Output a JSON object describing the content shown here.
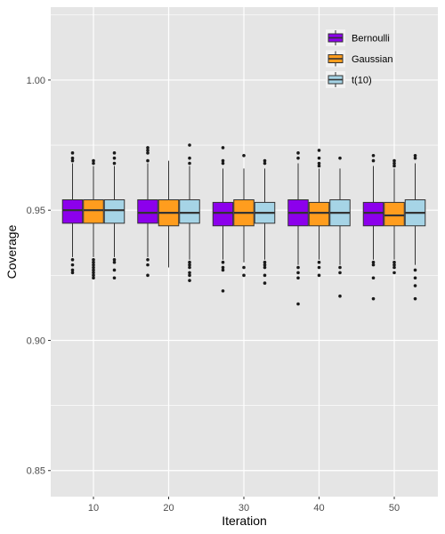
{
  "chart_data": {
    "type": "box",
    "xlabel": "Iteration",
    "ylabel": "Coverage",
    "categories": [
      "10",
      "20",
      "30",
      "40",
      "50"
    ],
    "ylim": [
      0.84,
      1.028
    ],
    "yticks": [
      0.85,
      0.9,
      0.95,
      1.0
    ],
    "ytick_labels": [
      "0.85",
      "0.90",
      "0.95",
      "1.00"
    ],
    "grid": true,
    "legend_position": "top-right",
    "series": [
      {
        "name": "Bernoulli",
        "color": "#8c00ec",
        "boxes": [
          {
            "q1": 0.945,
            "median": 0.95,
            "q3": 0.954,
            "whisker_low": 0.932,
            "whisker_high": 0.968,
            "outliers": [
              0.972,
              0.97,
              0.969,
              0.931,
              0.929,
              0.927,
              0.926
            ]
          },
          {
            "q1": 0.945,
            "median": 0.949,
            "q3": 0.954,
            "whisker_low": 0.932,
            "whisker_high": 0.968,
            "outliers": [
              0.974,
              0.973,
              0.972,
              0.969,
              0.931,
              0.929,
              0.925
            ]
          },
          {
            "q1": 0.944,
            "median": 0.949,
            "q3": 0.953,
            "whisker_low": 0.931,
            "whisker_high": 0.966,
            "outliers": [
              0.974,
              0.969,
              0.968,
              0.93,
              0.928,
              0.927,
              0.919
            ]
          },
          {
            "q1": 0.944,
            "median": 0.949,
            "q3": 0.954,
            "whisker_low": 0.929,
            "whisker_high": 0.968,
            "outliers": [
              0.972,
              0.97,
              0.928,
              0.926,
              0.924,
              0.914
            ]
          },
          {
            "q1": 0.944,
            "median": 0.949,
            "q3": 0.953,
            "whisker_low": 0.931,
            "whisker_high": 0.967,
            "outliers": [
              0.971,
              0.969,
              0.93,
              0.929,
              0.924,
              0.916
            ]
          }
        ]
      },
      {
        "name": "Gaussian",
        "color": "#ff9d1e",
        "boxes": [
          {
            "q1": 0.945,
            "median": 0.95,
            "q3": 0.954,
            "whisker_low": 0.932,
            "whisker_high": 0.967,
            "outliers": [
              0.969,
              0.968,
              0.931,
              0.93,
              0.929,
              0.928,
              0.927,
              0.926,
              0.925,
              0.924
            ]
          },
          {
            "q1": 0.944,
            "median": 0.949,
            "q3": 0.954,
            "whisker_low": 0.928,
            "whisker_high": 0.969,
            "outliers": []
          },
          {
            "q1": 0.944,
            "median": 0.949,
            "q3": 0.954,
            "whisker_low": 0.93,
            "whisker_high": 0.966,
            "outliers": [
              0.971,
              0.928,
              0.925
            ]
          },
          {
            "q1": 0.944,
            "median": 0.949,
            "q3": 0.953,
            "whisker_low": 0.931,
            "whisker_high": 0.966,
            "outliers": [
              0.973,
              0.97,
              0.968,
              0.967,
              0.93,
              0.928,
              0.925
            ]
          },
          {
            "q1": 0.944,
            "median": 0.948,
            "q3": 0.953,
            "whisker_low": 0.931,
            "whisker_high": 0.966,
            "outliers": [
              0.969,
              0.968,
              0.967,
              0.93,
              0.929,
              0.928,
              0.926
            ]
          }
        ]
      },
      {
        "name": "t(10)",
        "color": "#a6d4e6",
        "boxes": [
          {
            "q1": 0.945,
            "median": 0.95,
            "q3": 0.954,
            "whisker_low": 0.932,
            "whisker_high": 0.967,
            "outliers": [
              0.972,
              0.97,
              0.968,
              0.931,
              0.93,
              0.927,
              0.924
            ]
          },
          {
            "q1": 0.945,
            "median": 0.949,
            "q3": 0.954,
            "whisker_low": 0.931,
            "whisker_high": 0.967,
            "outliers": [
              0.975,
              0.97,
              0.968,
              0.93,
              0.929,
              0.928,
              0.926,
              0.925,
              0.923
            ]
          },
          {
            "q1": 0.945,
            "median": 0.949,
            "q3": 0.953,
            "whisker_low": 0.931,
            "whisker_high": 0.966,
            "outliers": [
              0.969,
              0.968,
              0.93,
              0.929,
              0.928,
              0.925,
              0.922
            ]
          },
          {
            "q1": 0.944,
            "median": 0.949,
            "q3": 0.954,
            "whisker_low": 0.929,
            "whisker_high": 0.966,
            "outliers": [
              0.97,
              0.928,
              0.926,
              0.917
            ]
          },
          {
            "q1": 0.944,
            "median": 0.949,
            "q3": 0.954,
            "whisker_low": 0.929,
            "whisker_high": 0.968,
            "outliers": [
              0.971,
              0.97,
              0.927,
              0.924,
              0.921,
              0.916
            ]
          }
        ]
      }
    ]
  },
  "style": {
    "panel_background": "#e5e5e5",
    "grid_color": "#ffffff",
    "box_stroke": "#333333",
    "outlier_color": "#1a1a1a"
  }
}
